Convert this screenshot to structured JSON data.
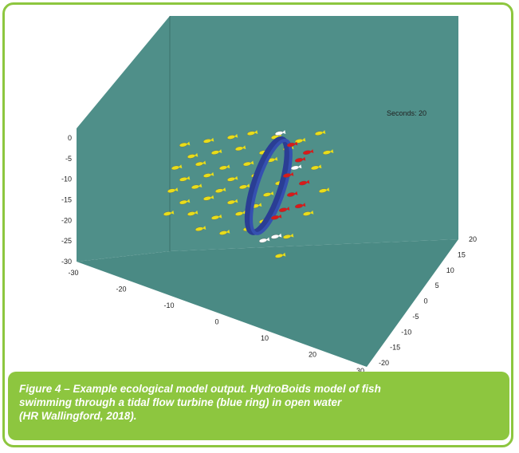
{
  "chart_data": {
    "type": "scatter3d",
    "annotation": "Seconds: 20",
    "x_ticks": [
      -30,
      -20,
      -10,
      0,
      10,
      20,
      30
    ],
    "y_ticks": [
      -20,
      -15,
      -10,
      -5,
      0,
      5,
      10,
      15,
      20
    ],
    "z_ticks": [
      0,
      -5,
      -10,
      -15,
      -20,
      -25,
      -30
    ],
    "xlim": [
      -30,
      30
    ],
    "ylim": [
      -20,
      20
    ],
    "zlim": [
      -30,
      0
    ],
    "colors": {
      "wall": "#4f8f89",
      "floor": "#4a8a84",
      "ring": "#2a3e94",
      "fish_yellow": "#e8dd1a",
      "fish_red": "#d81a1a",
      "fish_white": "#ffffff"
    },
    "ring": {
      "x": 2,
      "z": -13,
      "radius": 12
    },
    "fish": [
      {
        "x": -20,
        "z": -2,
        "c": "yellow"
      },
      {
        "x": -14,
        "z": -1,
        "c": "yellow"
      },
      {
        "x": -8,
        "z": 0,
        "c": "yellow"
      },
      {
        "x": -3,
        "z": 1,
        "c": "yellow"
      },
      {
        "x": 3,
        "z": 0,
        "c": "yellow"
      },
      {
        "x": 9,
        "z": -1,
        "c": "yellow"
      },
      {
        "x": 14,
        "z": 1,
        "c": "yellow"
      },
      {
        "x": -18,
        "z": -5,
        "c": "yellow"
      },
      {
        "x": -12,
        "z": -4,
        "c": "yellow"
      },
      {
        "x": -6,
        "z": -3,
        "c": "yellow"
      },
      {
        "x": 0,
        "z": -4,
        "c": "yellow"
      },
      {
        "x": 6,
        "z": -3,
        "c": "yellow"
      },
      {
        "x": -22,
        "z": -8,
        "c": "yellow"
      },
      {
        "x": -16,
        "z": -7,
        "c": "yellow"
      },
      {
        "x": -10,
        "z": -8,
        "c": "yellow"
      },
      {
        "x": -4,
        "z": -7,
        "c": "yellow"
      },
      {
        "x": 2,
        "z": -6,
        "c": "yellow"
      },
      {
        "x": -20,
        "z": -11,
        "c": "yellow"
      },
      {
        "x": -14,
        "z": -10,
        "c": "yellow"
      },
      {
        "x": -8,
        "z": -11,
        "c": "yellow"
      },
      {
        "x": -2,
        "z": -10,
        "c": "yellow"
      },
      {
        "x": 4,
        "z": -12,
        "c": "yellow"
      },
      {
        "x": -23,
        "z": -14,
        "c": "yellow"
      },
      {
        "x": -17,
        "z": -13,
        "c": "yellow"
      },
      {
        "x": -11,
        "z": -14,
        "c": "yellow"
      },
      {
        "x": -5,
        "z": -13,
        "c": "yellow"
      },
      {
        "x": 1,
        "z": -15,
        "c": "yellow"
      },
      {
        "x": -20,
        "z": -17,
        "c": "yellow"
      },
      {
        "x": -14,
        "z": -16,
        "c": "yellow"
      },
      {
        "x": -8,
        "z": -17,
        "c": "yellow"
      },
      {
        "x": -2,
        "z": -18,
        "c": "yellow"
      },
      {
        "x": -24,
        "z": -20,
        "c": "yellow"
      },
      {
        "x": -18,
        "z": -20,
        "c": "yellow"
      },
      {
        "x": -12,
        "z": -21,
        "c": "yellow"
      },
      {
        "x": -6,
        "z": -20,
        "c": "yellow"
      },
      {
        "x": 0,
        "z": -22,
        "c": "yellow"
      },
      {
        "x": -16,
        "z": -24,
        "c": "yellow"
      },
      {
        "x": -10,
        "z": -25,
        "c": "yellow"
      },
      {
        "x": -4,
        "z": -24,
        "c": "yellow"
      },
      {
        "x": 6,
        "z": -26,
        "c": "yellow"
      },
      {
        "x": 4,
        "z": -31,
        "c": "yellow"
      },
      {
        "x": 13,
        "z": -8,
        "c": "yellow"
      },
      {
        "x": 15,
        "z": -14,
        "c": "yellow"
      },
      {
        "x": 11,
        "z": -20,
        "c": "yellow"
      },
      {
        "x": 16,
        "z": -4,
        "c": "yellow"
      },
      {
        "x": 7,
        "z": -2,
        "c": "red"
      },
      {
        "x": 9,
        "z": -6,
        "c": "red"
      },
      {
        "x": 6,
        "z": -10,
        "c": "red"
      },
      {
        "x": 10,
        "z": -12,
        "c": "red"
      },
      {
        "x": 7,
        "z": -15,
        "c": "red"
      },
      {
        "x": 5,
        "z": -19,
        "c": "red"
      },
      {
        "x": 9,
        "z": -18,
        "c": "red"
      },
      {
        "x": 11,
        "z": -4,
        "c": "red"
      },
      {
        "x": 3,
        "z": -21,
        "c": "red"
      },
      {
        "x": 4,
        "z": 1,
        "c": "white"
      },
      {
        "x": 8,
        "z": -8,
        "c": "white"
      },
      {
        "x": 3,
        "z": -26,
        "c": "white"
      },
      {
        "x": 0,
        "z": -27,
        "c": "white"
      }
    ]
  },
  "caption": {
    "line1": "Figure 4 – Example ecological model output. HydroBoids model of fish",
    "line2": "swimming through a tidal flow turbine (blue ring) in open water",
    "line3": "(HR Wallingford, 2018)."
  }
}
